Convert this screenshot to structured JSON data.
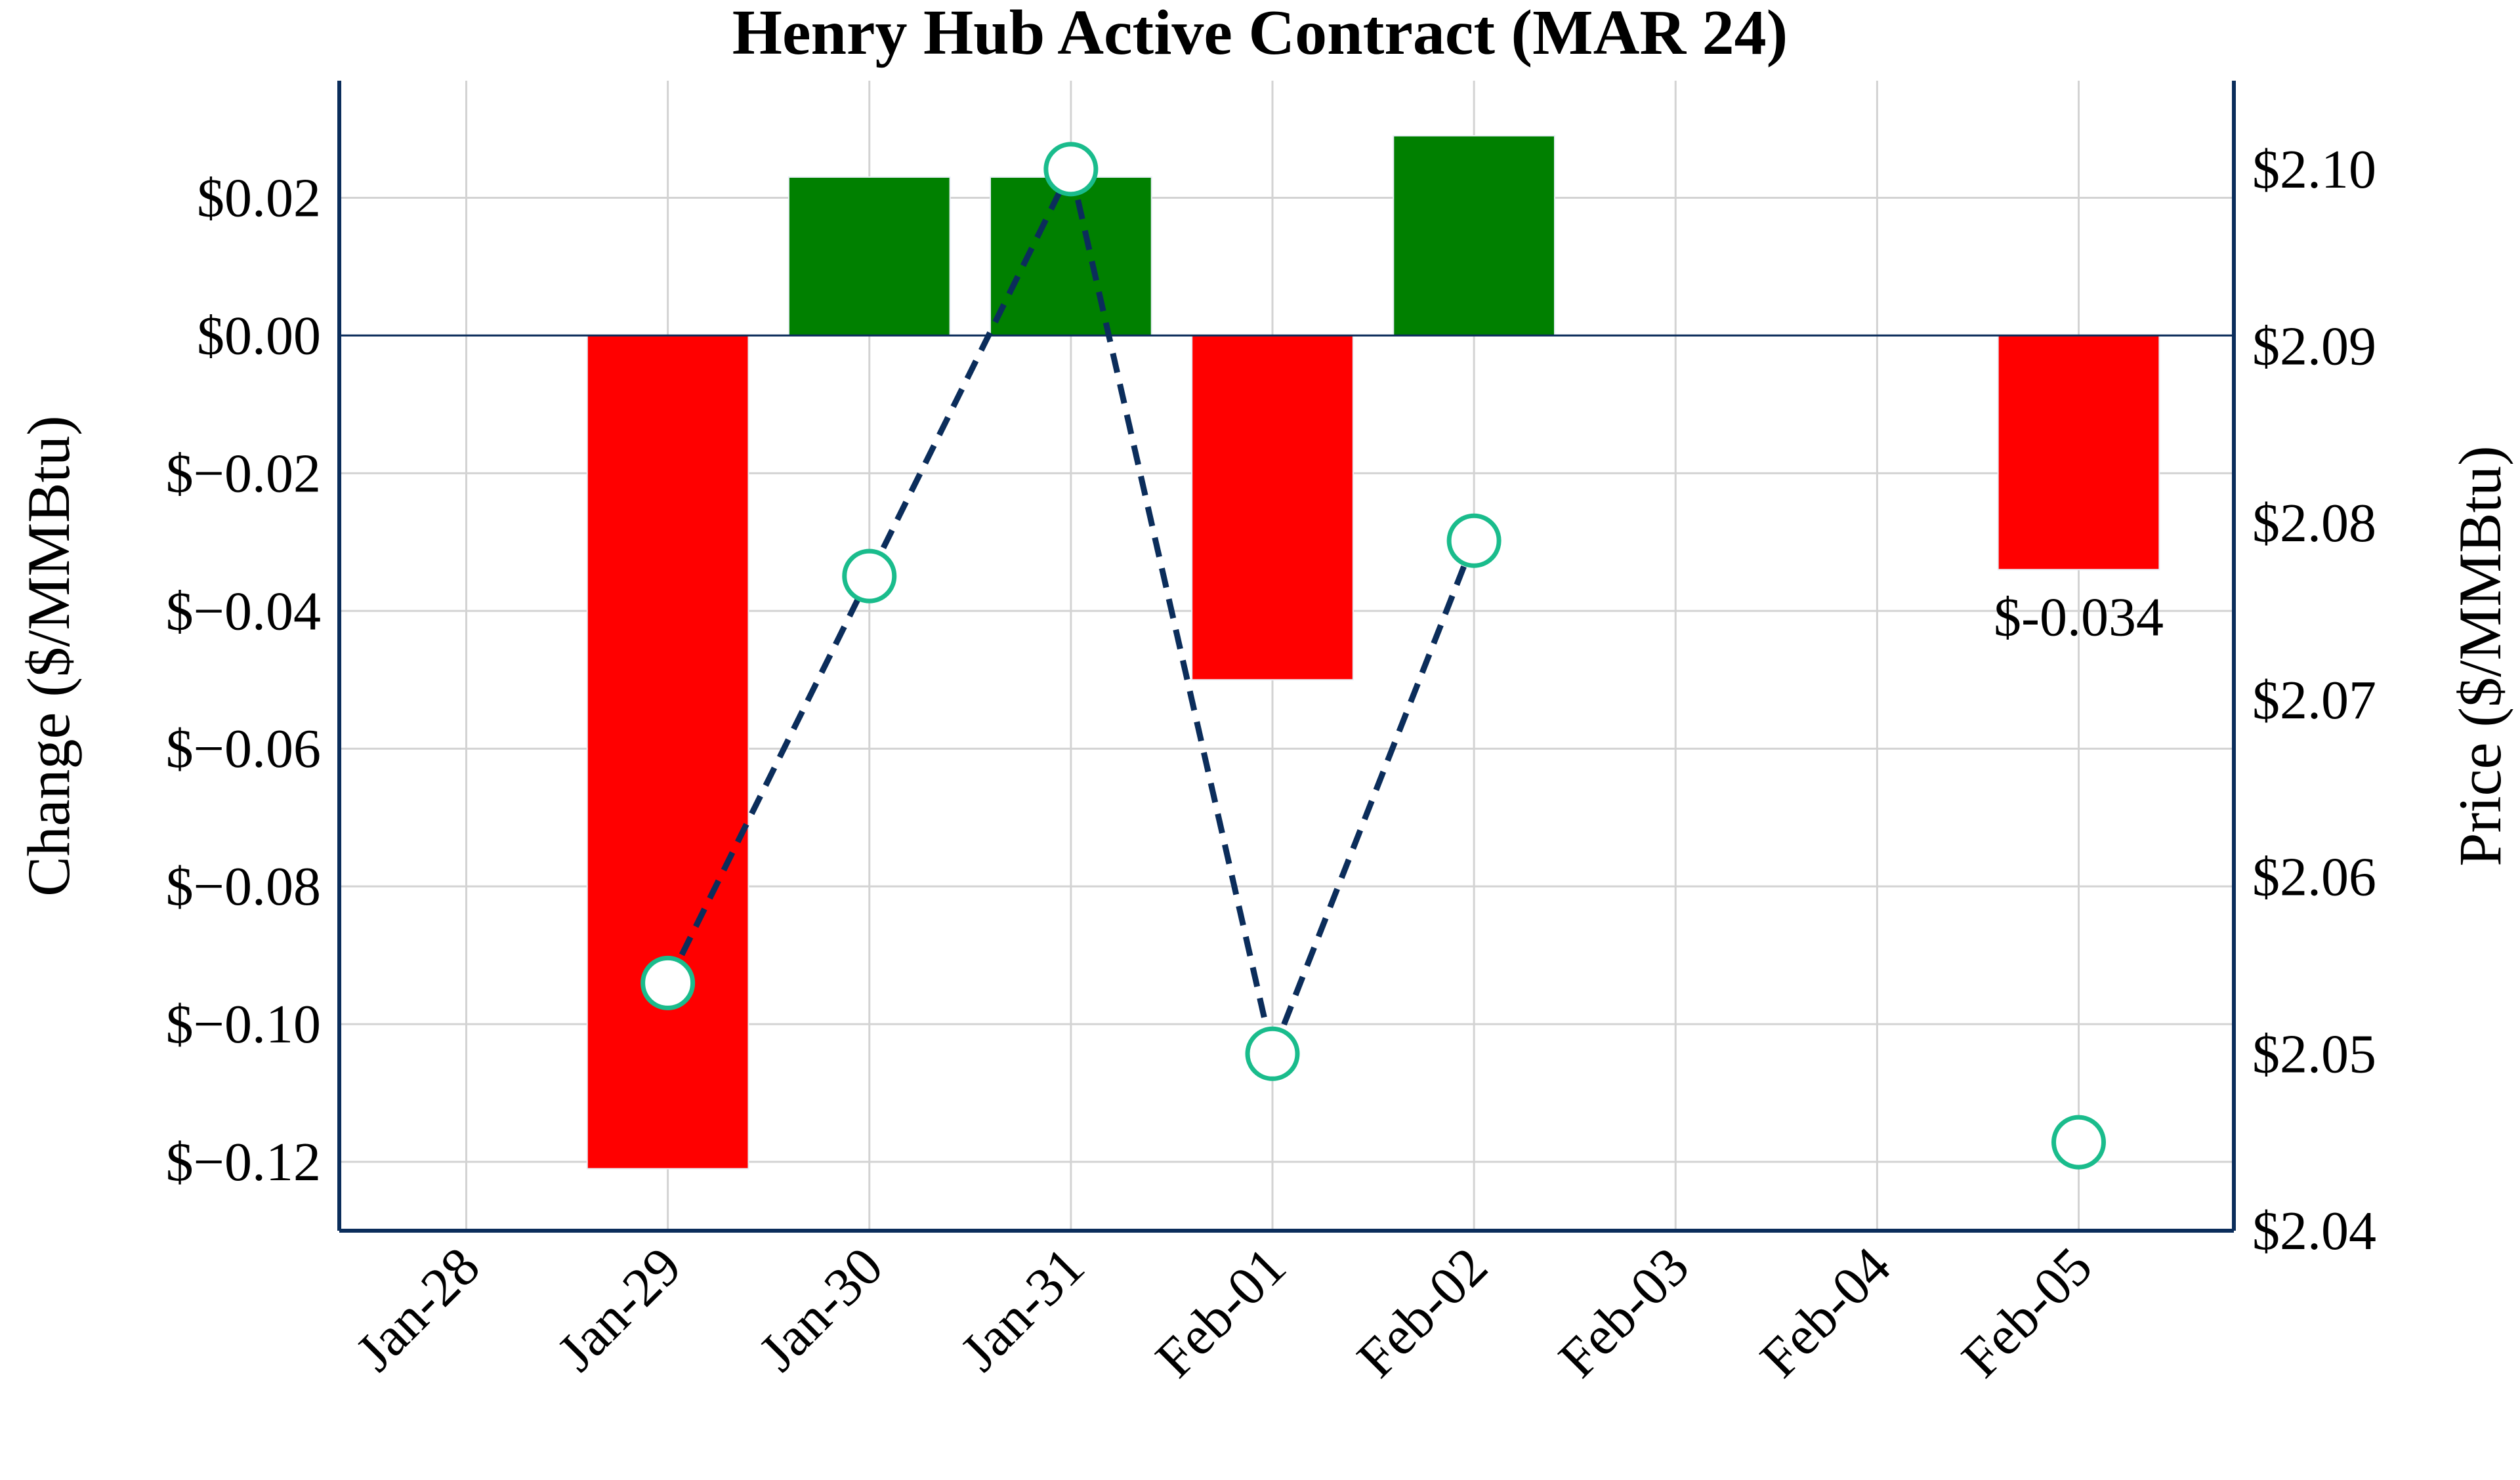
{
  "chart_data": {
    "type": "bar+line",
    "title": "Henry Hub Active Contract (MAR 24)",
    "xlabel": "",
    "ylabel_left": "Change ($/MMBtu)",
    "ylabel_right": "Price ($/MMBtu)",
    "categories": [
      "Jan-28",
      "Jan-29",
      "Jan-30",
      "Jan-31",
      "Feb-01",
      "Feb-02",
      "Feb-03",
      "Feb-04",
      "Feb-05"
    ],
    "series": [
      {
        "name": "Change",
        "type": "bar",
        "axis": "left",
        "values": [
          null,
          -0.121,
          0.023,
          0.023,
          -0.05,
          0.029,
          null,
          null,
          -0.034
        ]
      },
      {
        "name": "Price",
        "type": "line",
        "axis": "right",
        "style": "dashed",
        "marker": "circle",
        "values": [
          null,
          2.054,
          2.077,
          2.1,
          2.05,
          2.079,
          null,
          null,
          2.045
        ]
      }
    ],
    "ylim_left": [
      -0.13,
      0.037
    ],
    "ylim_right": [
      2.04,
      2.105
    ],
    "xlim_index": [
      -0.63,
      8.77
    ],
    "yticks_left": [
      "$0.02",
      "$0.00",
      "$−0.02",
      "$−0.04",
      "$−0.06",
      "$−0.08",
      "$−0.10",
      "$−0.12"
    ],
    "yticks_left_values": [
      0.02,
      0,
      -0.02,
      -0.04,
      -0.06,
      -0.08,
      -0.1,
      -0.12
    ],
    "yticks_right": [
      "$2.10",
      "$2.09",
      "$2.08",
      "$2.07",
      "$2.06",
      "$2.05",
      "$2.04"
    ],
    "yticks_right_values": [
      2.1,
      2.09,
      2.08,
      2.07,
      2.06,
      2.05,
      2.04
    ],
    "annotations": [
      {
        "category_index": 8,
        "value": -0.034,
        "text": "$-0.034"
      }
    ],
    "grid": true,
    "colors": {
      "up": "#008000",
      "down": "#ff0000",
      "line": "#0b2d5b",
      "marker_edge": "#1abc8c",
      "axis": "#0b2d5b",
      "grid": "#d3d3d3"
    }
  }
}
